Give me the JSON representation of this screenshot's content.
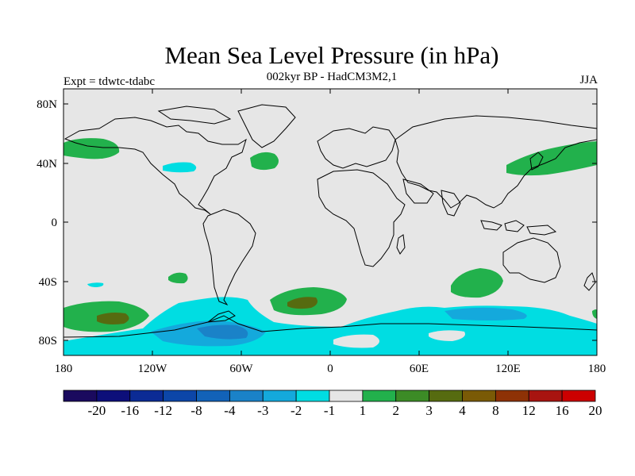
{
  "title": "Mean Sea Level Pressure (in hPa)",
  "subtitle": "002kyr BP - HadCM3M2,1",
  "experiment": "Expt = tdwtc-tdabc",
  "season": "JJA",
  "lat_labels": [
    "80N",
    "40N",
    "0",
    "40S",
    "80S"
  ],
  "lon_labels": [
    "180",
    "120W",
    "60W",
    "0",
    "60E",
    "120E",
    "180"
  ],
  "colorbar": {
    "labels": [
      "-20",
      "-16",
      "-12",
      "-8",
      "-4",
      "-3",
      "-2",
      "-1",
      "1",
      "2",
      "3",
      "4",
      "8",
      "12",
      "16",
      "20"
    ],
    "colors": [
      "#1a0a5e",
      "#0d0f7a",
      "#0b2b95",
      "#0c46a8",
      "#1262b8",
      "#1a82c8",
      "#14a9dc",
      "#00dde2",
      "#e6e6e6",
      "#22b14c",
      "#3c8b26",
      "#566b10",
      "#7a5a06",
      "#8e3206",
      "#a81410",
      "#cc0000"
    ]
  },
  "colors": {
    "background": "#e6e6e6",
    "positive_1": "#22b14c",
    "positive_2": "#566b10",
    "negative_1": "#00dde2",
    "negative_2": "#14a9dc",
    "negative_3": "#1a82c8"
  }
}
